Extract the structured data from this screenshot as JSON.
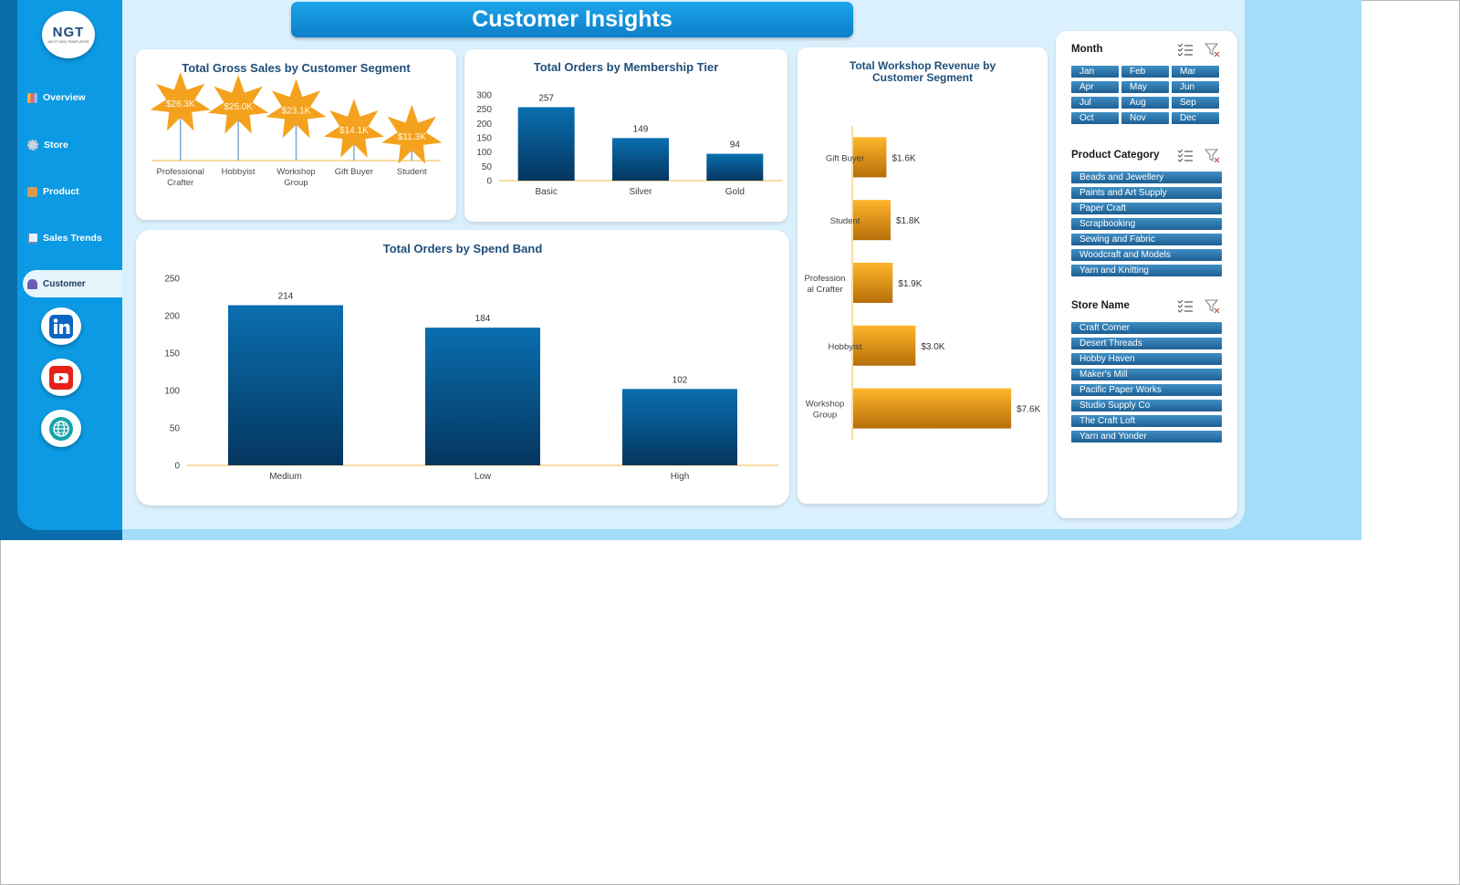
{
  "dashboard_title": "Customer Insights",
  "logo": {
    "text": "NGT",
    "subtext": "NEXT GEN TEMPLATES"
  },
  "nav": [
    {
      "label": "Overview",
      "icon": "bar-chart-icon"
    },
    {
      "label": "Store",
      "icon": "gear-icon"
    },
    {
      "label": "Product",
      "icon": "box-icon"
    },
    {
      "label": "Sales Trends",
      "icon": "line-chart-icon"
    },
    {
      "label": "Customer",
      "icon": "people-icon",
      "active": true
    }
  ],
  "social": [
    "linkedin-icon",
    "youtube-icon",
    "globe-icon"
  ],
  "charts": {
    "gross_sales": {
      "title": "Total Gross Sales by Customer Segment",
      "categories": [
        "Professional Crafter",
        "Hobbyist",
        "Workshop Group",
        "Gift Buyer",
        "Student"
      ],
      "labels": [
        "$26.3K",
        "$25.0K",
        "$23.1K",
        "$14.1K",
        "$11.3K"
      ]
    },
    "membership": {
      "title": "Total Orders by Membership Tier",
      "y_ticks": [
        "300",
        "250",
        "200",
        "150",
        "100",
        "50",
        "0"
      ],
      "categories": [
        "Basic",
        "Silver",
        "Gold"
      ],
      "labels": [
        "257",
        "149",
        "94"
      ]
    },
    "spend_band": {
      "title": "Total Orders by Spend Band",
      "y_ticks": [
        "250",
        "200",
        "150",
        "100",
        "50",
        "0"
      ],
      "categories": [
        "Medium",
        "Low",
        "High"
      ],
      "labels": [
        "214",
        "184",
        "102"
      ]
    },
    "workshop": {
      "title_line1": "Total Workshop Revenue by",
      "title_line2": "Customer Segment",
      "categories": [
        "Gift Buyer",
        "Student",
        "Profession al Crafter",
        "Hobbyist",
        "Workshop Group"
      ],
      "labels": [
        "$1.6K",
        "$1.8K",
        "$1.9K",
        "$3.0K",
        "$7.6K"
      ]
    }
  },
  "chart_data": [
    {
      "type": "scatter",
      "title": "Total Gross Sales by Customer Segment",
      "categories": [
        "Professional Crafter",
        "Hobbyist",
        "Workshop Group",
        "Gift Buyer",
        "Student"
      ],
      "values": [
        26.3,
        25.0,
        23.1,
        14.1,
        11.3
      ],
      "unit": "$K",
      "marker": "star"
    },
    {
      "type": "bar",
      "title": "Total Orders by Membership Tier",
      "categories": [
        "Basic",
        "Silver",
        "Gold"
      ],
      "values": [
        257,
        149,
        94
      ],
      "ylim": [
        0,
        300
      ]
    },
    {
      "type": "bar",
      "title": "Total Orders by Spend Band",
      "categories": [
        "Medium",
        "Low",
        "High"
      ],
      "values": [
        214,
        184,
        102
      ],
      "ylim": [
        0,
        250
      ]
    },
    {
      "type": "bar",
      "orientation": "horizontal",
      "title": "Total Workshop Revenue by Customer Segment",
      "categories": [
        "Gift Buyer",
        "Student",
        "Profession al Crafter",
        "Hobbyist",
        "Workshop Group"
      ],
      "values": [
        1.6,
        1.8,
        1.9,
        3.0,
        7.6
      ],
      "unit": "$K"
    }
  ],
  "slicers": {
    "month": {
      "title": "Month",
      "items": [
        "Jan",
        "Feb",
        "Mar",
        "Apr",
        "May",
        "Jun",
        "Jul",
        "Aug",
        "Sep",
        "Oct",
        "Nov",
        "Dec"
      ]
    },
    "product_category": {
      "title": "Product Category",
      "items": [
        "Beads and Jewellery",
        "Paints and Art Supply",
        "Paper Craft",
        "Scrapbooking",
        "Sewing and Fabric",
        "Woodcraft and Models",
        "Yarn and Knitting"
      ]
    },
    "store_name": {
      "title": "Store Name",
      "items": [
        "Craft Corner",
        "Desert Threads",
        "Hobby Haven",
        "Maker's Mill",
        "Pacific Paper Works",
        "Studio Supply Co",
        "The Craft Loft",
        "Yarn and Yonder"
      ]
    }
  },
  "colors": {
    "bar_blue_top": "#0a6fb0",
    "bar_blue_bottom": "#05365f",
    "orange_light": "#ffb52a",
    "orange_dark": "#b66f0a",
    "star": "#f4a21e",
    "axis_line": "#f3c76a",
    "title_blue": "#1f4e79"
  }
}
